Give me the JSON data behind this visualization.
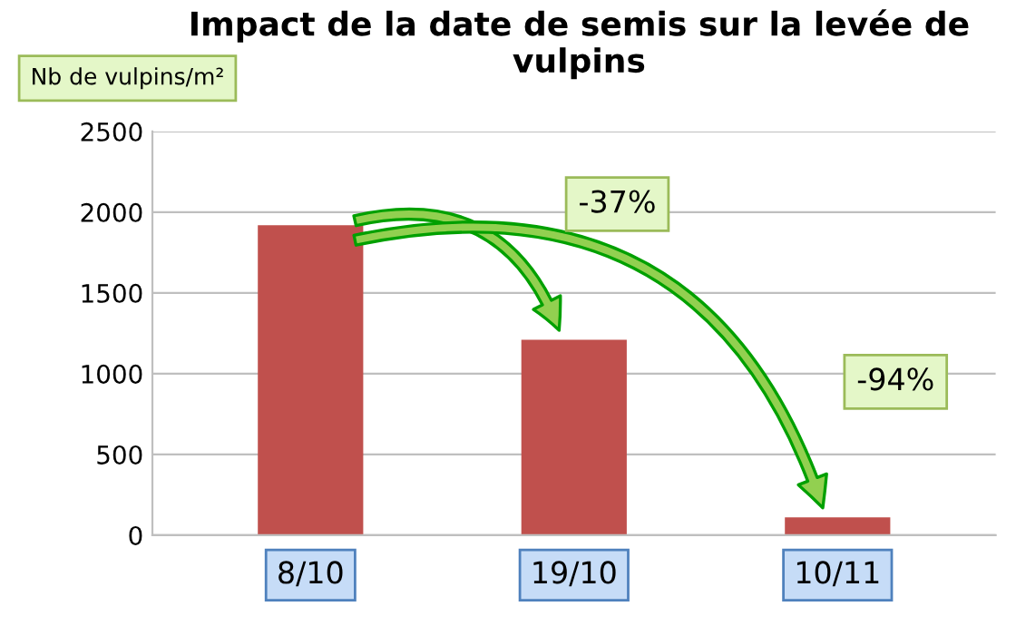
{
  "chart_data": {
    "type": "bar",
    "title": "Impact de la date de semis sur la levée de vulpins",
    "ylabel": "Nb de vulpins/m²",
    "categories": [
      "8/10",
      "19/10",
      "10/11"
    ],
    "values": [
      1920,
      1210,
      110
    ],
    "color": "#c0504d",
    "ylim": [
      0,
      2500
    ],
    "yticks": [
      0,
      500,
      1000,
      1500,
      2000,
      2500
    ],
    "grid": "y",
    "annotations": [
      "-37%",
      "-94%"
    ]
  }
}
